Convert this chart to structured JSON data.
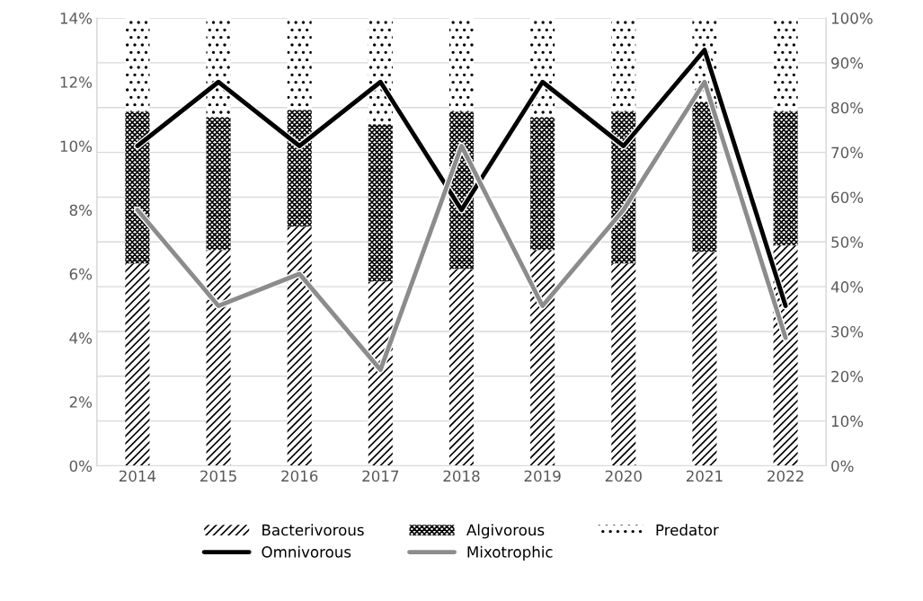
{
  "chart_data": {
    "type": "bar",
    "stacked": true,
    "categories": [
      "2014",
      "2015",
      "2016",
      "2017",
      "2018",
      "2019",
      "2020",
      "2021",
      "2022"
    ],
    "series": [
      {
        "name": "Bacterivorous",
        "axis": "y2",
        "color": "#000000",
        "values": [
          45.2,
          48.2,
          53.4,
          41.2,
          44.0,
          48.2,
          45.2,
          47.8,
          49.2
        ]
      },
      {
        "name": "Algivorous",
        "axis": "y2",
        "color": "#000000",
        "values": [
          33.9,
          29.7,
          26.1,
          35.1,
          35.1,
          29.7,
          33.9,
          33.5,
          29.9
        ]
      },
      {
        "name": "Predator",
        "axis": "y2",
        "color": "#000000",
        "values": [
          20.9,
          22.1,
          20.5,
          23.7,
          20.9,
          22.1,
          20.9,
          18.7,
          20.9
        ]
      },
      {
        "name": "Omnivorous",
        "type": "line",
        "color": "#000000",
        "values": [
          10,
          12,
          10,
          12,
          8,
          12,
          10,
          13,
          5
        ]
      },
      {
        "name": "Mixotrophic",
        "type": "line",
        "color": "#8c8c8c",
        "values": [
          8,
          5,
          6,
          3,
          10,
          5,
          8,
          12,
          4
        ]
      }
    ],
    "ylim": [
      0,
      14
    ],
    "yticks": [
      {
        "value": 0,
        "label": "0%"
      },
      {
        "value": 2,
        "label": "2%"
      },
      {
        "value": 4,
        "label": "4%"
      },
      {
        "value": 6,
        "label": "6%"
      },
      {
        "value": 8,
        "label": "8%"
      },
      {
        "value": 10,
        "label": "10%"
      },
      {
        "value": 12,
        "label": "12%"
      },
      {
        "value": 14,
        "label": "14%"
      }
    ],
    "y2lim": [
      0,
      100
    ],
    "y2ticks": [
      {
        "value": 0,
        "label": "0%"
      },
      {
        "value": 10,
        "label": "10%"
      },
      {
        "value": 20,
        "label": "20%"
      },
      {
        "value": 30,
        "label": "30%"
      },
      {
        "value": 40,
        "label": "40%"
      },
      {
        "value": 50,
        "label": "50%"
      },
      {
        "value": 60,
        "label": "60%"
      },
      {
        "value": 70,
        "label": "70%"
      },
      {
        "value": 80,
        "label": "80%"
      },
      {
        "value": 90,
        "label": "90%"
      },
      {
        "value": 100,
        "label": "100%"
      }
    ],
    "grid": "y",
    "legend": "bottom",
    "marker": "none",
    "line_style": "solid"
  }
}
